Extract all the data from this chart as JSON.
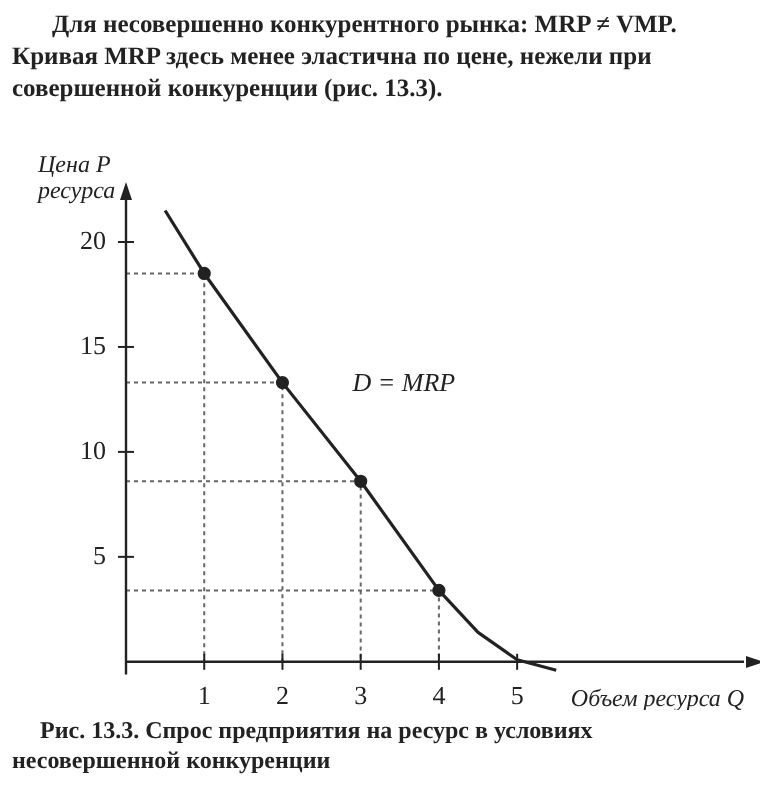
{
  "chart_data": {
    "type": "line",
    "title": "Рис. 13.3. Спрос предприятия на ресурс в условиях несовершенной конкуренции",
    "xlabel": "Объем ресурса Q",
    "ylabel": "Цена P ресурса",
    "annotations": [
      "Для несовершенно конкурентного рынка: MRP ≠ VMP. Кривая MRP здесь менее эластична по цене, нежели при совершенной конкуренции (рис. 13.3)."
    ],
    "series": [
      {
        "name": "D = MRP",
        "color": "#222222",
        "marker": "none",
        "x": [
          0.5,
          1,
          2,
          3,
          4,
          4.5,
          5,
          5.5
        ],
        "values": [
          21.5,
          18.5,
          13.3,
          8.6,
          3.4,
          1.4,
          0.1,
          -0.4
        ]
      },
      {
        "type": "scatter",
        "color": "#222222",
        "marker": "circle",
        "x": [
          1,
          2,
          3,
          4
        ],
        "values": [
          18.5,
          13.3,
          8.6,
          3.4
        ]
      },
      {
        "color": "#666666",
        "line_style": "dotted",
        "marker": "none",
        "x": [
          0,
          1,
          1
        ],
        "values": [
          18.5,
          18.5,
          0
        ]
      },
      {
        "color": "#666666",
        "line_style": "dotted",
        "marker": "none",
        "x": [
          0,
          2,
          2
        ],
        "values": [
          13.3,
          13.3,
          0
        ]
      },
      {
        "color": "#666666",
        "line_style": "dotted",
        "marker": "none",
        "x": [
          0,
          3,
          3
        ],
        "values": [
          8.6,
          8.6,
          0
        ]
      },
      {
        "color": "#666666",
        "line_style": "dotted",
        "marker": "none",
        "x": [
          0,
          4,
          4
        ],
        "values": [
          3.4,
          3.4,
          0
        ]
      }
    ],
    "xlim": [
      0,
      7.9
    ],
    "xticks": [
      1,
      2,
      3,
      4,
      5
    ],
    "ylim": [
      -0.6,
      22
    ],
    "yticks": [
      5,
      10,
      15,
      20
    ],
    "grid": false,
    "legend": false
  }
}
